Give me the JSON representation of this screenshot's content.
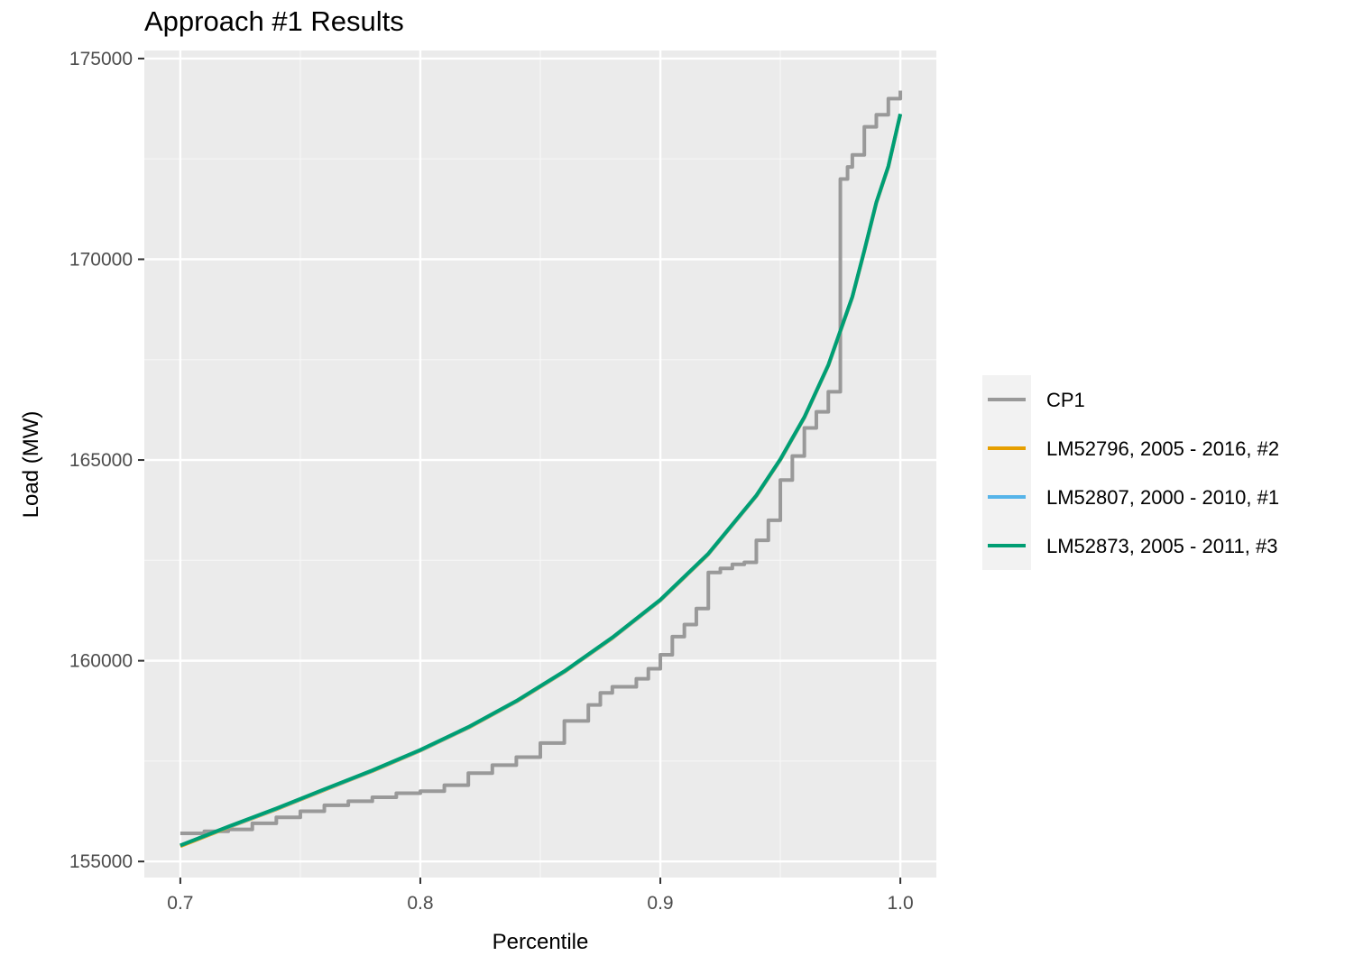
{
  "chart_data": {
    "type": "line",
    "title": "Approach #1 Results",
    "xlabel": "Percentile",
    "ylabel": "Load (MW)",
    "xlim": [
      0.685,
      1.015
    ],
    "ylim": [
      154600,
      175200
    ],
    "x_ticks": [
      0.7,
      0.8,
      0.9,
      1.0
    ],
    "x_tick_labels": [
      "0.7",
      "0.8",
      "0.9",
      "1.0"
    ],
    "y_ticks": [
      155000,
      160000,
      165000,
      170000,
      175000
    ],
    "y_tick_labels": [
      "155000",
      "160000",
      "165000",
      "170000",
      "175000"
    ],
    "grid": true,
    "panel_background": "#ebebeb",
    "legend_position": "right",
    "series": [
      {
        "name": "CP1",
        "color": "#999999",
        "step": true,
        "x": [
          0.7,
          0.71,
          0.72,
          0.73,
          0.74,
          0.75,
          0.76,
          0.77,
          0.78,
          0.79,
          0.8,
          0.81,
          0.82,
          0.83,
          0.84,
          0.85,
          0.86,
          0.87,
          0.875,
          0.88,
          0.89,
          0.895,
          0.9,
          0.905,
          0.91,
          0.915,
          0.92,
          0.925,
          0.93,
          0.935,
          0.94,
          0.945,
          0.95,
          0.955,
          0.96,
          0.965,
          0.97,
          0.975,
          0.978,
          0.98,
          0.985,
          0.99,
          0.995,
          1.0
        ],
        "values": [
          155700,
          155750,
          155800,
          155950,
          156100,
          156250,
          156400,
          156500,
          156600,
          156700,
          156750,
          156900,
          157200,
          157400,
          157600,
          157950,
          158500,
          158900,
          159200,
          159350,
          159550,
          159800,
          160150,
          160600,
          160900,
          161300,
          162200,
          162300,
          162400,
          162450,
          163000,
          163500,
          164500,
          165100,
          165800,
          166200,
          166700,
          172000,
          172300,
          172600,
          173300,
          173600,
          174000,
          174200
        ]
      },
      {
        "name": "LM52796, 2005 - 2016,  #2",
        "color": "#e69f00",
        "x": [
          0.7,
          0.72,
          0.74,
          0.76,
          0.78,
          0.8,
          0.82,
          0.84,
          0.86,
          0.88,
          0.9,
          0.92,
          0.94,
          0.95,
          0.96,
          0.97,
          0.98,
          0.985,
          0.99,
          0.995,
          1.0
        ],
        "values": [
          155380,
          155850,
          156300,
          156780,
          157250,
          157760,
          158330,
          158980,
          159720,
          160560,
          161500,
          162650,
          164100,
          165000,
          166050,
          167350,
          169050,
          170200,
          171400,
          172300,
          173600
        ]
      },
      {
        "name": "LM52807, 2000 - 2010,  #1",
        "color": "#56b4e9",
        "x": [
          0.7,
          0.72,
          0.74,
          0.76,
          0.78,
          0.8,
          0.82,
          0.84,
          0.86,
          0.88,
          0.9,
          0.92,
          0.94,
          0.95,
          0.96,
          0.97,
          0.98,
          0.985,
          0.99,
          0.995,
          1.0
        ],
        "values": [
          155400,
          155860,
          156310,
          156790,
          157260,
          157770,
          158340,
          158990,
          159730,
          160570,
          161510,
          162660,
          164110,
          165010,
          166060,
          167360,
          169060,
          170210,
          171410,
          172310,
          173610
        ]
      },
      {
        "name": "LM52873, 2005 - 2011,  #3",
        "color": "#009e73",
        "x": [
          0.7,
          0.72,
          0.74,
          0.76,
          0.78,
          0.8,
          0.82,
          0.84,
          0.86,
          0.88,
          0.9,
          0.92,
          0.94,
          0.95,
          0.96,
          0.97,
          0.98,
          0.985,
          0.99,
          0.995,
          1.0
        ],
        "values": [
          155400,
          155870,
          156320,
          156800,
          157270,
          157780,
          158350,
          159000,
          159740,
          160580,
          161520,
          162670,
          164120,
          165020,
          166070,
          167370,
          169070,
          170220,
          171420,
          172320,
          173620
        ]
      }
    ]
  }
}
